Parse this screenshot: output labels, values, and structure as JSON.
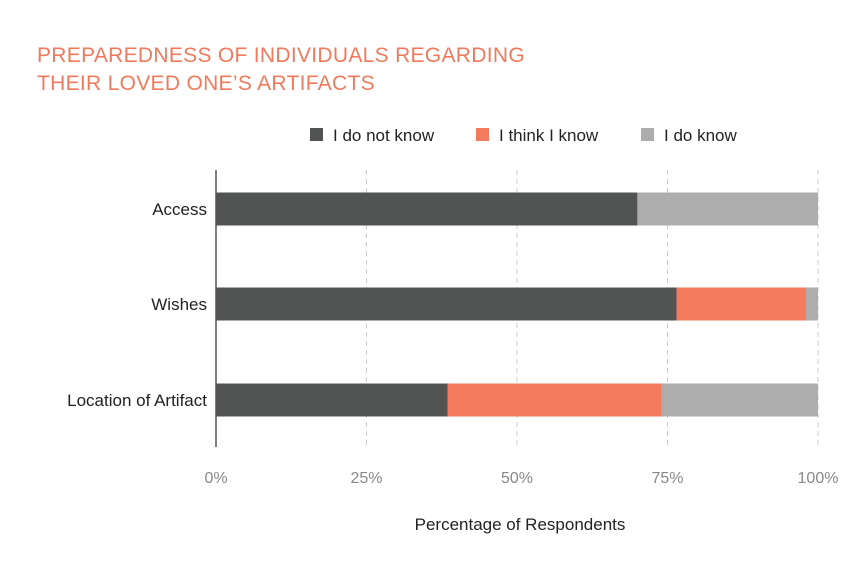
{
  "chart_data": {
    "type": "bar",
    "orientation": "horizontal",
    "stacked": true,
    "title_lines": [
      "PREPAREDNESS OF INDIVIDUALS REGARDING",
      "THEIR LOVED ONE’S ARTIFACTS"
    ],
    "xlabel": "Percentage of Respondents",
    "ylabel": "",
    "xlim": [
      0,
      100
    ],
    "x_ticks": [
      "0%",
      "25%",
      "50%",
      "75%",
      "100%"
    ],
    "x_tick_values": [
      0,
      25,
      50,
      75,
      100
    ],
    "grid": "vertical dashed",
    "legend_position": "top",
    "categories": [
      "Access",
      "Wishes",
      "Location of Artifact"
    ],
    "series": [
      {
        "name": "I do not know",
        "color": "#525453",
        "values": [
          70,
          76.5,
          38.5
        ]
      },
      {
        "name": "I think I know",
        "color": "#f37a5d",
        "values": [
          0,
          21.5,
          35.5
        ]
      },
      {
        "name": "I do know",
        "color": "#adadad",
        "values": [
          30,
          2,
          26
        ]
      }
    ]
  }
}
